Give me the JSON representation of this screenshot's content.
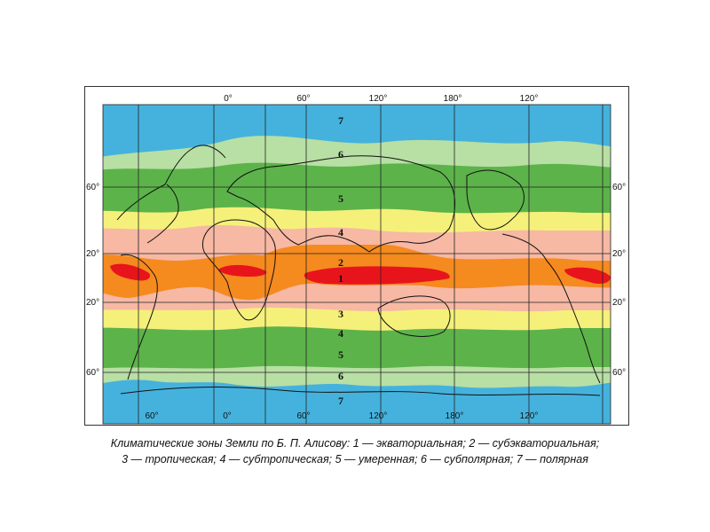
{
  "map": {
    "top_lon_labels": [
      "0°",
      "60°",
      "120°",
      "180°",
      "120°"
    ],
    "bottom_lon_labels": [
      "60°",
      "0°",
      "60°",
      "120°",
      "180°",
      "120°"
    ],
    "left_lat_labels": [
      "60°",
      "20°",
      "20°",
      "60°"
    ],
    "right_lat_labels": [
      "60°",
      "20°",
      "20°",
      "60°"
    ],
    "zone_numbers_upper": [
      "7",
      "6",
      "5",
      "4",
      "2",
      "1"
    ],
    "zone_numbers_lower": [
      "3",
      "4",
      "5",
      "6",
      "7"
    ],
    "zone_colors": {
      "1": "#e8141c",
      "2": "#f58a1f",
      "3": "#f7b8a4",
      "4": "#f5f07a",
      "5": "#5cb34a",
      "6": "#b8dfa4",
      "7": "#45b2dd"
    }
  },
  "caption": {
    "line1": "Климатические зоны Земли по Б. П. Алисову: 1 — экваториальная; 2 — субэкваториальная;",
    "line2": "3 — тропическая; 4 — субтропическая; 5 — умеренная; 6 — субполярная; 7 — полярная"
  }
}
